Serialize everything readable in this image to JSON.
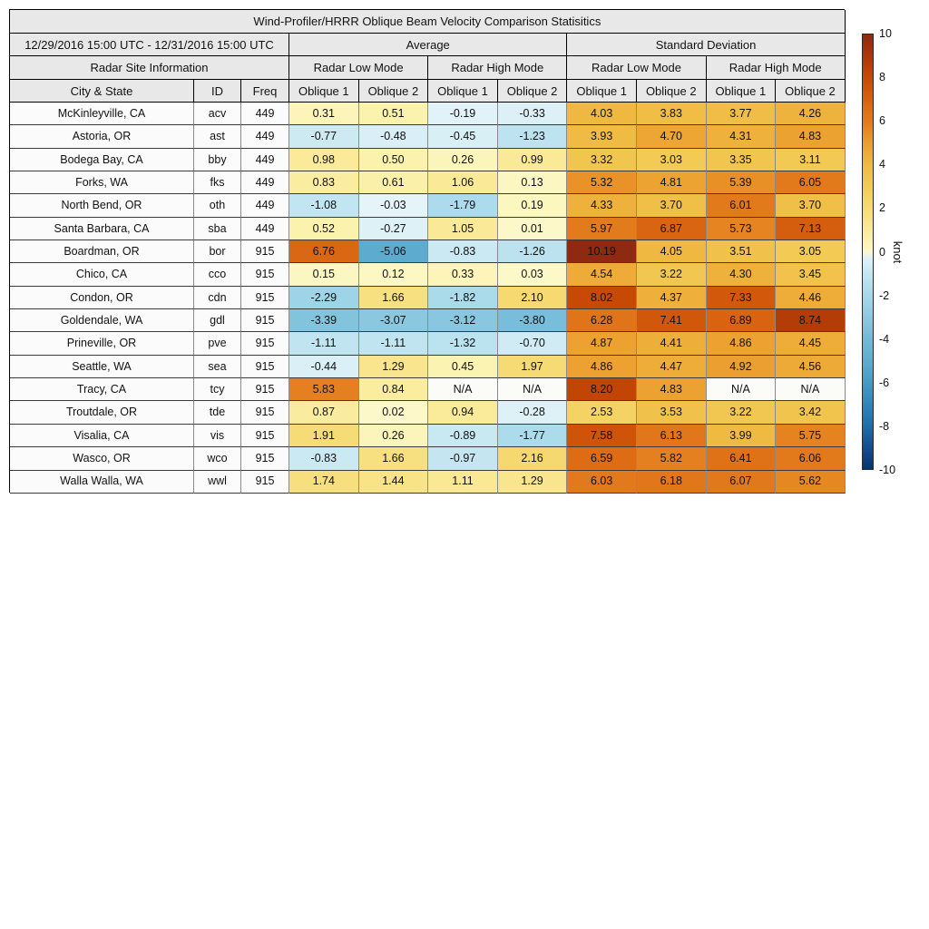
{
  "title": "Wind-Profiler/HRRR Oblique Beam Velocity Comparison Statisitics",
  "header": {
    "date_range": "12/29/2016 15:00 UTC - 12/31/2016 15:00 UTC",
    "group_average": "Average",
    "group_std": "Standard Deviation",
    "site_info": "Radar Site Information",
    "mode_labels": [
      "Radar Low Mode",
      "Radar High Mode",
      "Radar Low Mode",
      "Radar High Mode"
    ],
    "col_labels": [
      "City & State",
      "ID",
      "Freq",
      "Oblique 1",
      "Oblique 2",
      "Oblique 1",
      "Oblique 2",
      "Oblique 1",
      "Oblique 2",
      "Oblique 1",
      "Oblique 2"
    ]
  },
  "colorbar": {
    "label": "knot",
    "min": -10,
    "max": 10,
    "ticks": [
      "10",
      "8",
      "6",
      "4",
      "2",
      "0",
      "-2",
      "-4",
      "-6",
      "-8",
      "-10"
    ]
  },
  "colors": {
    "na_cell": "#fbfbf8",
    "header_bg": "#e8e8e8",
    "label_cell_bg": "#fbfbfb",
    "positive_stops": [
      [
        0,
        "#fdf8ca"
      ],
      [
        0.5,
        "#fbf2ae"
      ],
      [
        1,
        "#faea98"
      ],
      [
        1.5,
        "#f8e285"
      ],
      [
        2,
        "#f6db74"
      ],
      [
        3,
        "#f2cb55"
      ],
      [
        4,
        "#efba42"
      ],
      [
        4.5,
        "#eeac38"
      ],
      [
        5,
        "#eb9d2e"
      ],
      [
        5.5,
        "#e78c24"
      ],
      [
        6,
        "#e27a1c"
      ],
      [
        6.5,
        "#de6f16"
      ],
      [
        7,
        "#d76010"
      ],
      [
        7.5,
        "#d0550a"
      ],
      [
        8,
        "#c84906"
      ],
      [
        8.5,
        "#bc4006"
      ],
      [
        9,
        "#ac3708"
      ],
      [
        9.5,
        "#9d300c"
      ],
      [
        10,
        "#8f2b10"
      ],
      [
        10.3,
        "#8c2a11"
      ]
    ],
    "negative_stops": [
      [
        -10,
        "#083371"
      ],
      [
        -9,
        "#124e92"
      ],
      [
        -8,
        "#1e6fac"
      ],
      [
        -7,
        "#2e86ba"
      ],
      [
        -6,
        "#459bc6"
      ],
      [
        -5,
        "#5eadd0"
      ],
      [
        -4.5,
        "#68b4d4"
      ],
      [
        -4,
        "#72bad8"
      ],
      [
        -3.5,
        "#80c2dc"
      ],
      [
        -3,
        "#8cc9e1"
      ],
      [
        -2.5,
        "#99d1e6"
      ],
      [
        -2,
        "#a5d8ea"
      ],
      [
        -1.5,
        "#b4dfee"
      ],
      [
        -1,
        "#c4e6f1"
      ],
      [
        -0.5,
        "#d8eef6"
      ],
      [
        -0.001,
        "#e6f4f9"
      ]
    ]
  },
  "chart_data": {
    "type": "table",
    "title": "Wind-Profiler/HRRR Oblique Beam Velocity Comparison Statisitics",
    "date_range": "12/29/2016 15:00 UTC - 12/31/2016 15:00 UTC",
    "column_groups": [
      "Average / Radar Low Mode",
      "Average / Radar High Mode",
      "Standard Deviation / Radar Low Mode",
      "Standard Deviation / Radar High Mode"
    ],
    "columns": [
      "City & State",
      "ID",
      "Freq",
      "Avg Low Oblique 1",
      "Avg Low Oblique 2",
      "Avg High Oblique 1",
      "Avg High Oblique 2",
      "SD Low Oblique 1",
      "SD Low Oblique 2",
      "SD High Oblique 1",
      "SD High Oblique 2"
    ],
    "unit": "knot",
    "rows": [
      {
        "city": "McKinleyville, CA",
        "id": "acv",
        "freq": "449",
        "values": [
          "0.31",
          "0.51",
          "-0.19",
          "-0.33",
          "4.03",
          "3.83",
          "3.77",
          "4.26"
        ]
      },
      {
        "city": "Astoria, OR",
        "id": "ast",
        "freq": "449",
        "values": [
          "-0.77",
          "-0.48",
          "-0.45",
          "-1.23",
          "3.93",
          "4.70",
          "4.31",
          "4.83"
        ]
      },
      {
        "city": "Bodega Bay, CA",
        "id": "bby",
        "freq": "449",
        "values": [
          "0.98",
          "0.50",
          "0.26",
          "0.99",
          "3.32",
          "3.03",
          "3.35",
          "3.11"
        ]
      },
      {
        "city": "Forks, WA",
        "id": "fks",
        "freq": "449",
        "values": [
          "0.83",
          "0.61",
          "1.06",
          "0.13",
          "5.32",
          "4.81",
          "5.39",
          "6.05"
        ]
      },
      {
        "city": "North Bend, OR",
        "id": "oth",
        "freq": "449",
        "values": [
          "-1.08",
          "-0.03",
          "-1.79",
          "0.19",
          "4.33",
          "3.70",
          "6.01",
          "3.70"
        ]
      },
      {
        "city": "Santa Barbara, CA",
        "id": "sba",
        "freq": "449",
        "values": [
          "0.52",
          "-0.27",
          "1.05",
          "0.01",
          "5.97",
          "6.87",
          "5.73",
          "7.13"
        ]
      },
      {
        "city": "Boardman, OR",
        "id": "bor",
        "freq": "915",
        "values": [
          "6.76",
          "-5.06",
          "-0.83",
          "-1.26",
          "10.19",
          "4.05",
          "3.51",
          "3.05"
        ]
      },
      {
        "city": "Chico, CA",
        "id": "cco",
        "freq": "915",
        "values": [
          "0.15",
          "0.12",
          "0.33",
          "0.03",
          "4.54",
          "3.22",
          "4.30",
          "3.45"
        ]
      },
      {
        "city": "Condon, OR",
        "id": "cdn",
        "freq": "915",
        "values": [
          "-2.29",
          "1.66",
          "-1.82",
          "2.10",
          "8.02",
          "4.37",
          "7.33",
          "4.46"
        ]
      },
      {
        "city": "Goldendale, WA",
        "id": "gdl",
        "freq": "915",
        "values": [
          "-3.39",
          "-3.07",
          "-3.12",
          "-3.80",
          "6.28",
          "7.41",
          "6.89",
          "8.74"
        ]
      },
      {
        "city": "Prineville, OR",
        "id": "pve",
        "freq": "915",
        "values": [
          "-1.11",
          "-1.11",
          "-1.32",
          "-0.70",
          "4.87",
          "4.41",
          "4.86",
          "4.45"
        ]
      },
      {
        "city": "Seattle, WA",
        "id": "sea",
        "freq": "915",
        "values": [
          "-0.44",
          "1.29",
          "0.45",
          "1.97",
          "4.86",
          "4.47",
          "4.92",
          "4.56"
        ]
      },
      {
        "city": "Tracy, CA",
        "id": "tcy",
        "freq": "915",
        "values": [
          "5.83",
          "0.84",
          "N/A",
          "N/A",
          "8.20",
          "4.83",
          "N/A",
          "N/A"
        ]
      },
      {
        "city": "Troutdale, OR",
        "id": "tde",
        "freq": "915",
        "values": [
          "0.87",
          "0.02",
          "0.94",
          "-0.28",
          "2.53",
          "3.53",
          "3.22",
          "3.42"
        ]
      },
      {
        "city": "Visalia, CA",
        "id": "vis",
        "freq": "915",
        "values": [
          "1.91",
          "0.26",
          "-0.89",
          "-1.77",
          "7.58",
          "6.13",
          "3.99",
          "5.75"
        ]
      },
      {
        "city": "Wasco, OR",
        "id": "wco",
        "freq": "915",
        "values": [
          "-0.83",
          "1.66",
          "-0.97",
          "2.16",
          "6.59",
          "5.82",
          "6.41",
          "6.06"
        ]
      },
      {
        "city": "Walla Walla, WA",
        "id": "wwl",
        "freq": "915",
        "values": [
          "1.74",
          "1.44",
          "1.11",
          "1.29",
          "6.03",
          "6.18",
          "6.07",
          "5.62"
        ]
      }
    ],
    "colorbar": {
      "label": "knot",
      "min": -10,
      "max": 10,
      "tick_step": 2
    }
  }
}
